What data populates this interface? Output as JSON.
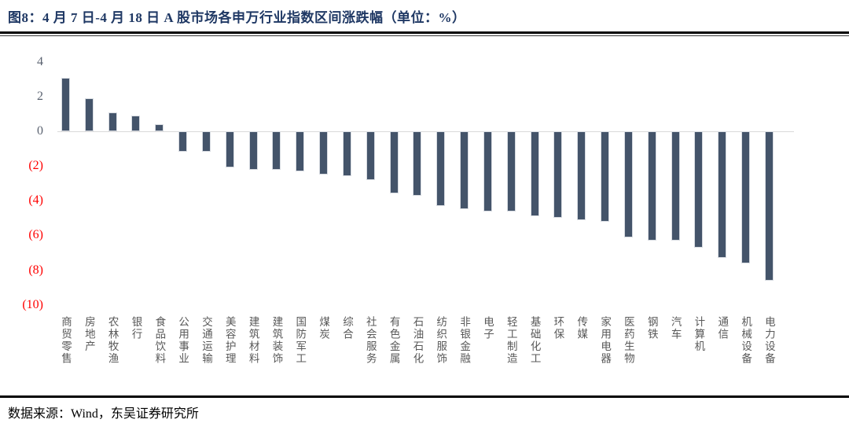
{
  "header": {
    "title": "图8：4 月 7 日-4 月 18 日 A 股市场各申万行业指数区间涨跌幅（单位：%）"
  },
  "footer": {
    "source": "数据来源：Wind，东吴证券研究所"
  },
  "chart_data": {
    "type": "bar",
    "title": "4月7日-4月18日A股市场各申万行业指数区间涨跌幅",
    "unit": "%",
    "categories": [
      "商贸零售",
      "房地产",
      "农林牧渔",
      "银行",
      "食品饮料",
      "公用事业",
      "交通运输",
      "美容护理",
      "建筑材料",
      "建筑装饰",
      "国防军工",
      "煤炭",
      "综合",
      "社会服务",
      "有色金属",
      "石油石化",
      "纺织服饰",
      "非银金融",
      "电子",
      "轻工制造",
      "基础化工",
      "环保",
      "传媒",
      "家用电器",
      "医药生物",
      "钢铁",
      "汽车",
      "计算机",
      "通信",
      "机械设备",
      "电力设备"
    ],
    "values": [
      3.1,
      1.9,
      1.1,
      0.9,
      0.4,
      -1.2,
      -1.2,
      -2.1,
      -2.2,
      -2.2,
      -2.3,
      -2.5,
      -2.6,
      -2.8,
      -3.6,
      -3.7,
      -4.3,
      -4.5,
      -4.6,
      -4.6,
      -4.9,
      -5.0,
      -5.1,
      -5.2,
      -6.1,
      -6.3,
      -6.3,
      -6.7,
      -7.3,
      -7.6,
      -8.6
    ],
    "y_ticks": [
      {
        "label": "4",
        "value": 4
      },
      {
        "label": "2",
        "value": 2
      },
      {
        "label": "0",
        "value": 0
      },
      {
        "label": "(2)",
        "value": -2
      },
      {
        "label": "(4)",
        "value": -4
      },
      {
        "label": "(6)",
        "value": -6
      },
      {
        "label": "(8)",
        "value": -8
      },
      {
        "label": "(10)",
        "value": -10
      }
    ],
    "ylim": [
      -10.5,
      4.8
    ],
    "grid": "zero-line-only",
    "legend_position": "none",
    "xlabel": "",
    "ylabel": "",
    "colors": {
      "bar": "#44546A",
      "positive_tick_text": "#5A6270",
      "negative_tick_text": "#FF0000",
      "zero_line": "#D9D9D9",
      "category_text": "#595959",
      "title_text": "#1F3864"
    }
  }
}
